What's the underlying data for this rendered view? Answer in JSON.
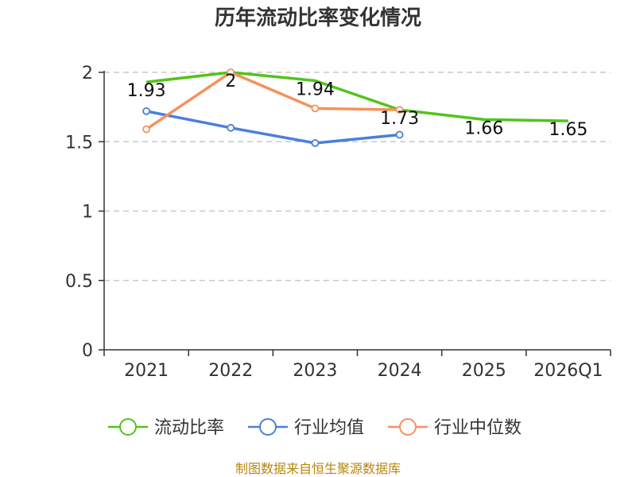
{
  "chart_data": {
    "type": "line",
    "title": "历年流动比率变化情况",
    "categories": [
      "2021",
      "2022",
      "2023",
      "2024",
      "2025",
      "2026Q1"
    ],
    "ylim": [
      0,
      2
    ],
    "yticks": [
      "0",
      "0.5",
      "1",
      "1.5",
      "2"
    ],
    "grid": true,
    "legend_position": "bottom",
    "series": [
      {
        "name": "流动比率",
        "color": "#52c41a",
        "values": [
          1.93,
          2,
          1.94,
          1.73,
          1.66,
          1.65
        ],
        "labels": [
          "1.93",
          "2",
          "1.94",
          "1.73",
          "1.66",
          "1.65"
        ]
      },
      {
        "name": "行业均值",
        "color": "#4a7fdc",
        "values": [
          1.72,
          1.6,
          1.49,
          1.55,
          null,
          null
        ]
      },
      {
        "name": "行业中位数",
        "color": "#f4925e",
        "values": [
          1.59,
          2.0,
          1.74,
          1.73,
          null,
          null
        ]
      }
    ],
    "source": "制图数据来自恒生聚源数据库"
  }
}
